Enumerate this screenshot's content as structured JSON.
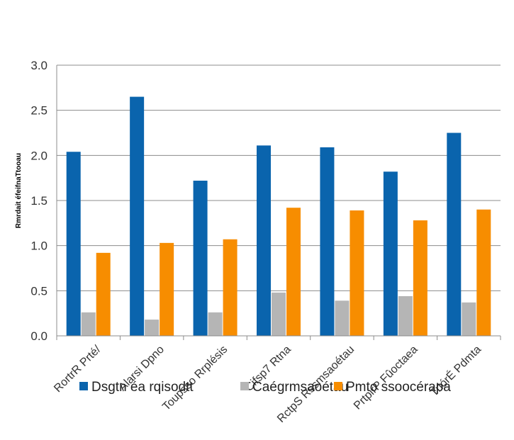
{
  "chart_data": {
    "type": "bar",
    "title": "",
    "xlabel": "",
    "ylabel": "Rmrdait éfeifnaTtooau",
    "ylim": [
      0,
      3.0
    ],
    "yticks": [
      "0.0",
      "0.5",
      "1.0",
      "1.5",
      "2.0",
      "2.5",
      "3.0"
    ],
    "grid": true,
    "legend_position": "bottom",
    "categories": [
      "RortrR Prté/",
      "Alarsi Dpno",
      "Toupsso Rrplésis",
      "Cifsp7 Rtna",
      "RctpS Rssmsaoétau",
      "PrtpirP Fûoctaea",
      "TrlórÉ Pdmta"
    ],
    "series": [
      {
        "name": "Dsgtn éa rqisodtt",
        "color": "#0a64ad",
        "values": [
          2.04,
          2.65,
          1.72,
          2.11,
          2.09,
          1.82,
          2.25
        ]
      },
      {
        "name": "Caégrmsaoétau",
        "color": "#b5b5b5",
        "values": [
          0.26,
          0.18,
          0.26,
          0.48,
          0.39,
          0.44,
          0.37
        ]
      },
      {
        "name": "Pmto ssoocérapa",
        "color": "#f78d00",
        "values": [
          0.92,
          1.03,
          1.07,
          1.42,
          1.39,
          1.28,
          1.4
        ]
      }
    ]
  }
}
